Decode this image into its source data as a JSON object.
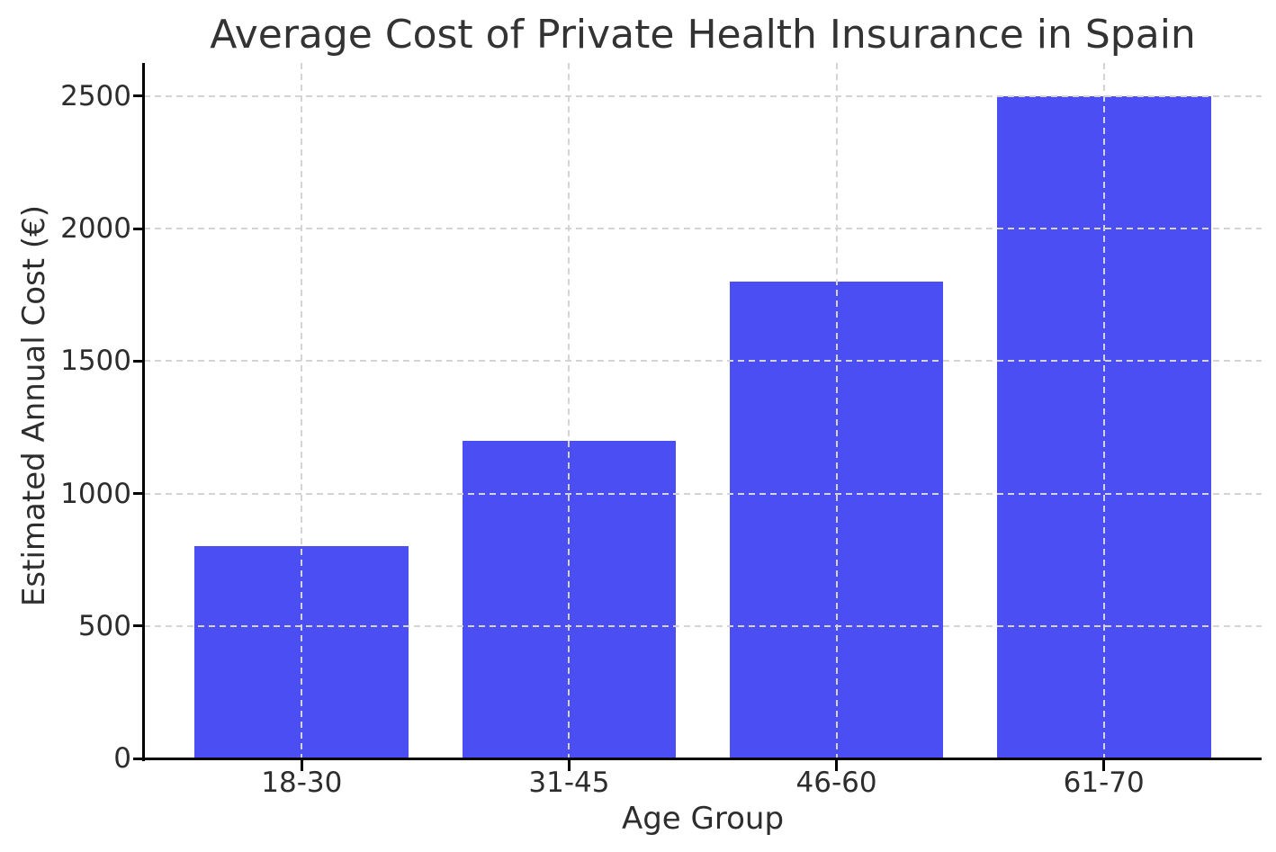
{
  "figure": {
    "background": "#ffffff"
  },
  "chart_data": {
    "type": "bar",
    "title": "Average Cost of Private Health Insurance in Spain",
    "xlabel": "Age Group",
    "ylabel": "Estimated Annual Cost (€)",
    "categories": [
      "18-30",
      "31-45",
      "46-60",
      "61-70"
    ],
    "values": [
      800,
      1200,
      1800,
      2500
    ],
    "yticks": [
      0,
      500,
      1000,
      1500,
      2000,
      2500
    ],
    "ylim": [
      0,
      2625
    ],
    "bar_color": "#4b4ef2",
    "grid": "dashed, drawn above bars",
    "grid_color": "#d4d4d4",
    "axis_color": "#000000",
    "text_color": "#2d2d2d",
    "legend": "none"
  }
}
